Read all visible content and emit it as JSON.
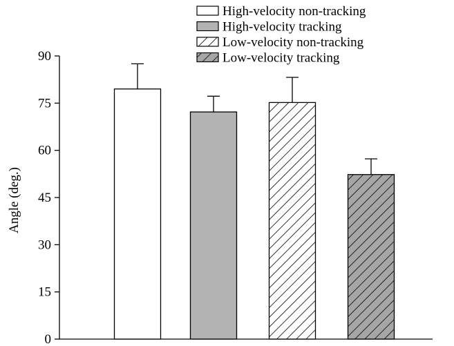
{
  "chart_data": {
    "type": "bar",
    "title": "",
    "xlabel": "",
    "ylabel": "Angle (deg.)",
    "ylim": [
      0,
      90
    ],
    "yticks": [
      0,
      15,
      30,
      45,
      60,
      75,
      90
    ],
    "grid": false,
    "legend_position": "top",
    "series": [
      {
        "name": "High-velocity non-tracking",
        "value": 79.5,
        "error": 8.0,
        "fill": "#ffffff",
        "hatch": "none"
      },
      {
        "name": "High-velocity tracking",
        "value": 72.2,
        "error": 5.0,
        "fill": "#b3b3b3",
        "hatch": "none"
      },
      {
        "name": "Low-velocity non-tracking",
        "value": 75.2,
        "error": 8.0,
        "fill": "#ffffff",
        "hatch": "diagonal"
      },
      {
        "name": "Low-velocity tracking",
        "value": 52.3,
        "error": 5.0,
        "fill": "#a6a6a6",
        "hatch": "diagonal"
      }
    ]
  }
}
